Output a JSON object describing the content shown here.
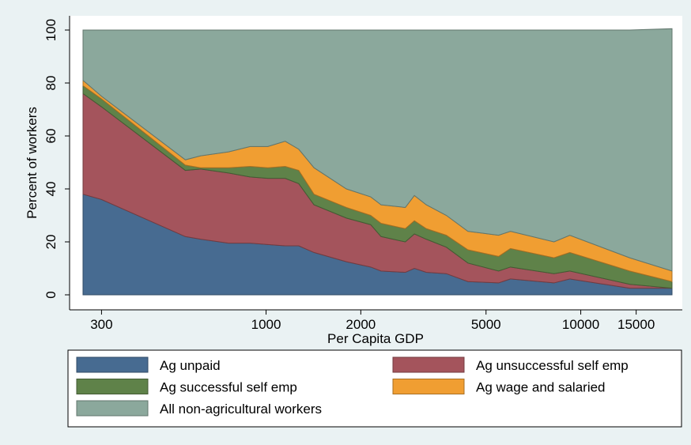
{
  "chart_data": {
    "type": "stacked_area",
    "x": [
      262,
      300,
      554,
      620,
      760,
      890,
      1013,
      1150,
      1270,
      1420,
      1800,
      2150,
      2320,
      2770,
      2960,
      3230,
      3740,
      4380,
      5480,
      5980,
      8220,
      9230,
      14300,
      19500
    ],
    "xlabel": "Per Capita GDP",
    "ylabel": "Percent of workers",
    "xlim": [
      262,
      19500
    ],
    "xticks": [
      300,
      1000,
      2000,
      5000,
      10000,
      15000
    ],
    "xscale": "log",
    "ylim": [
      0,
      100
    ],
    "yticks": [
      0,
      20,
      40,
      60,
      80,
      100
    ],
    "series": [
      {
        "name": "Ag unpaid",
        "color": "#476b91",
        "values": [
          38,
          36,
          22,
          21,
          19.5,
          19.5,
          19,
          18.5,
          18.5,
          16,
          12.5,
          10.5,
          9,
          8.5,
          10,
          8.5,
          8,
          5,
          4.5,
          6,
          4.5,
          6,
          2.5,
          2.5
        ]
      },
      {
        "name": "Ag unsuccessful self emp",
        "color": "#a4545c",
        "values": [
          38,
          35,
          25,
          26.5,
          26.5,
          25,
          25,
          25.5,
          23.5,
          18,
          16.5,
          16,
          13,
          11.5,
          13,
          12.5,
          10,
          7,
          4.5,
          4.5,
          3.5,
          3,
          1.5,
          0
        ]
      },
      {
        "name": "Ag successful self emp",
        "color": "#5f8249",
        "values": [
          3,
          3,
          2,
          0.5,
          2,
          4,
          4,
          4.5,
          5,
          4,
          4,
          3.5,
          5,
          5,
          5,
          4,
          4.5,
          5,
          5.5,
          7,
          6,
          7,
          5,
          2.5
        ]
      },
      {
        "name": "Ag wage and salaried",
        "color": "#f09e32",
        "values": [
          2,
          1,
          2,
          4.5,
          6,
          7.5,
          8,
          9.5,
          8,
          10,
          7,
          7,
          7,
          8,
          9.5,
          9,
          7.5,
          7,
          8,
          6.5,
          6,
          6.5,
          5,
          4
        ]
      },
      {
        "name": "All non-agricultural workers",
        "color": "#8ba89c",
        "values": [
          19,
          25,
          49,
          47.5,
          46,
          44,
          44,
          42,
          45,
          52,
          60,
          63,
          66,
          67,
          62.5,
          66,
          70,
          76,
          77.5,
          76,
          80,
          77.5,
          86,
          91.5
        ]
      }
    ]
  }
}
